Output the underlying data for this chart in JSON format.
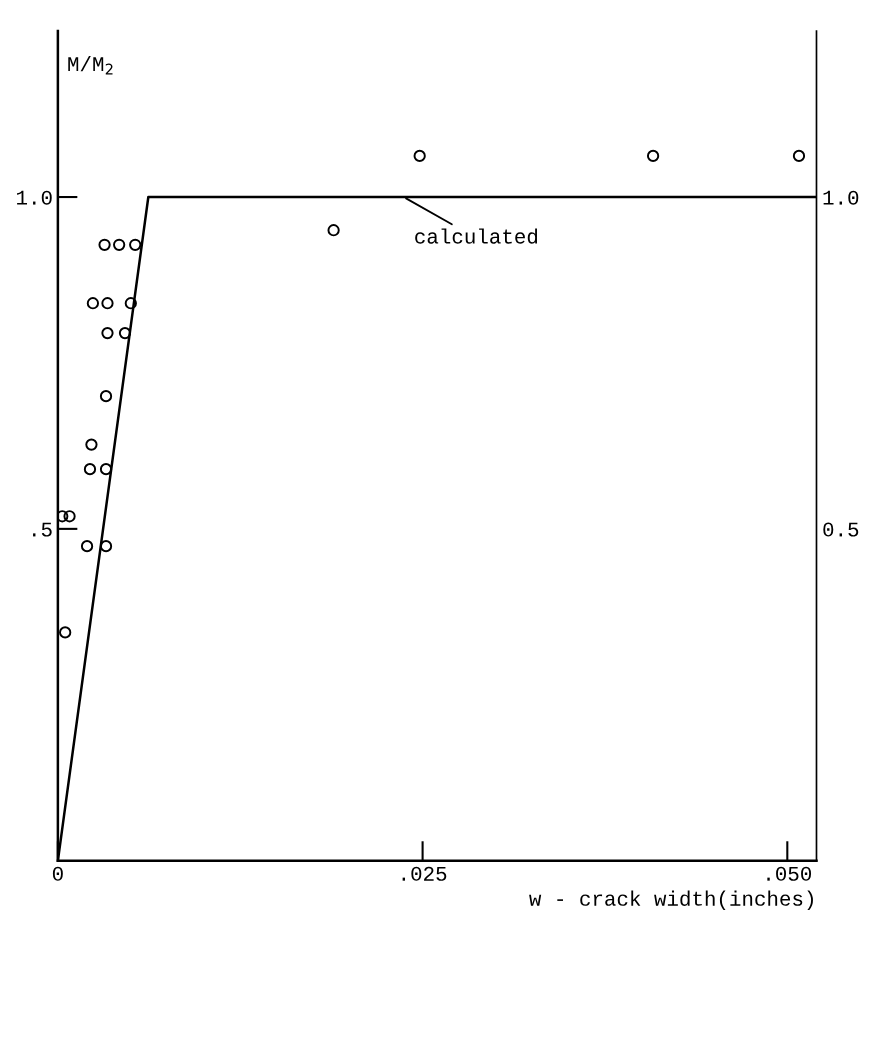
{
  "chart_data": {
    "type": "scatter",
    "xlabel": "w - crack width(inches)",
    "ylabel": "M/M$_{2}$",
    "series": [
      {
        "color": "#000000",
        "marker": "circle",
        "x": [
          0.0032,
          0.0042,
          0.0053,
          0.0024,
          0.0034,
          0.005,
          0.0034,
          0.0046,
          0.0033,
          0.0023,
          0.0022,
          0.0033,
          0.002,
          0.0033,
          0.0003,
          0.0008,
          0.0005,
          0.0189,
          0.0248,
          0.0408,
          0.0508
        ],
        "values": [
          0.928,
          0.928,
          0.928,
          0.84,
          0.84,
          0.84,
          0.795,
          0.795,
          0.7,
          0.627,
          0.59,
          0.59,
          0.474,
          0.474,
          0.519,
          0.519,
          0.344,
          0.95,
          1.062,
          1.062,
          1.062
        ]
      },
      {
        "type": "line",
        "color": "#000000",
        "marker": "none",
        "line_style": "solid",
        "x": [
          0,
          0.0062,
          0.052
        ],
        "values": [
          0,
          1.0,
          1.0
        ]
      }
    ],
    "annotations": [
      {
        "text": "calculated",
        "x": 0.0237,
        "y": 1.0
      }
    ],
    "xlim": [
      0,
      0.052
    ],
    "ylim": [
      0,
      1.25
    ],
    "y2lim": [
      0,
      1.25
    ],
    "xticks": [
      0,
      {
        "value": 0.025,
        "label": ".025"
      },
      {
        "value": 0.05,
        "label": ".050"
      }
    ],
    "yticks": [
      {
        "value": 0.5,
        "label": ".5"
      },
      {
        "value": 1.0,
        "label": "1.0"
      }
    ],
    "y2ticks": [
      {
        "value": 0.5,
        "label": "0.5"
      },
      {
        "value": 1.0,
        "label": "1.0"
      }
    ],
    "grid": false,
    "legend": false
  }
}
